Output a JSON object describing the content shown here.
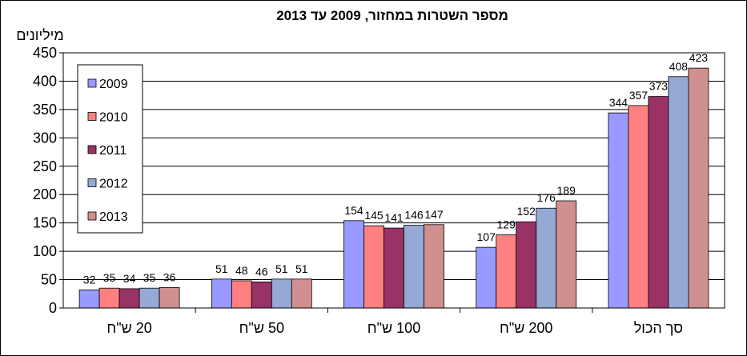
{
  "chart_data": {
    "type": "bar",
    "title": "מספר השטרות במחזור, 2009 עד 2013",
    "ylabel": "מיליונים",
    "xlabel": "",
    "ylim": [
      0,
      450
    ],
    "yticks": [
      "0",
      "50",
      "100",
      "150",
      "200",
      "250",
      "300",
      "350",
      "400",
      "450"
    ],
    "grid": true,
    "legend_position": "left",
    "categories": [
      "20 ש\"ח",
      "50 ש\"ח",
      "100 ש\"ח",
      "200 ש\"ח",
      "סך הכול"
    ],
    "series": [
      {
        "name": "2009",
        "color": "#9999ff",
        "values": [
          32,
          51,
          154,
          107,
          344
        ]
      },
      {
        "name": "2010",
        "color": "#ff8080",
        "values": [
          35,
          48,
          145,
          129,
          357
        ]
      },
      {
        "name": "2011",
        "color": "#993366",
        "values": [
          34,
          46,
          141,
          152,
          373
        ]
      },
      {
        "name": "2012",
        "color": "#95a9d4",
        "values": [
          35,
          51,
          146,
          176,
          408
        ]
      },
      {
        "name": "2013",
        "color": "#d09090",
        "values": [
          36,
          51,
          147,
          189,
          423
        ]
      }
    ]
  }
}
